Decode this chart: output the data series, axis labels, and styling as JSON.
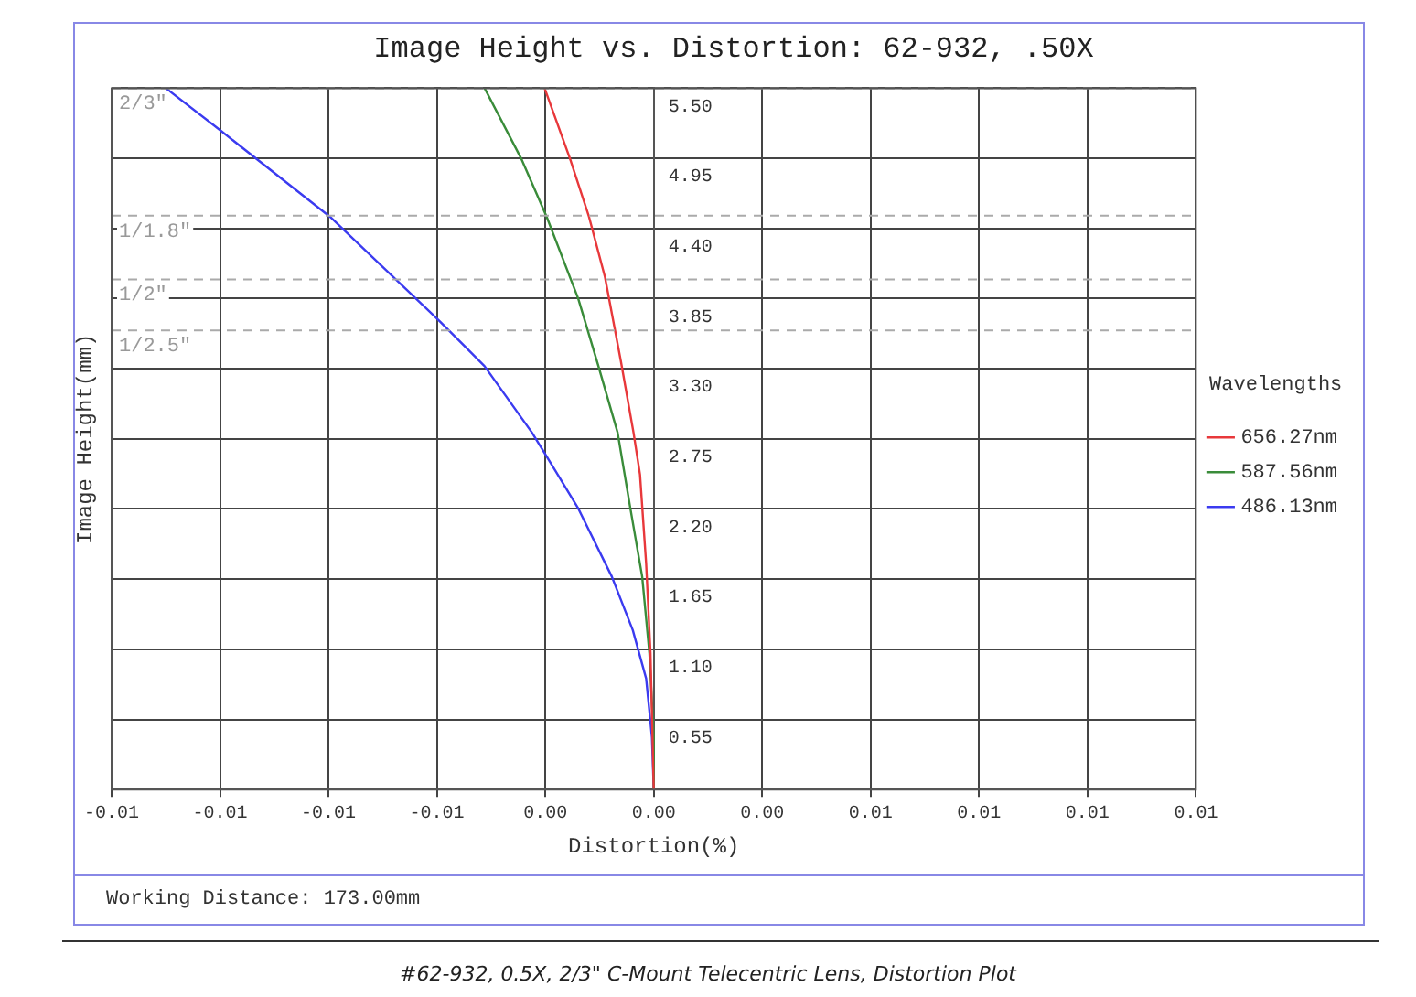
{
  "chart_data": {
    "type": "line",
    "title": "Image Height vs. Distortion: 62-932, .50X",
    "xlabel": "Distortion(%)",
    "ylabel": "Image Height(mm)",
    "legend_title": "Wavelengths",
    "legend": "right",
    "grid": true,
    "marker": "none",
    "line_style": "solid",
    "xlim": [
      -0.015,
      0.015
    ],
    "xticks": [
      {
        "value": -0.015,
        "label": "-0.01"
      },
      {
        "value": -0.012,
        "label": "-0.01"
      },
      {
        "value": -0.009,
        "label": "-0.01"
      },
      {
        "value": -0.006,
        "label": "-0.01"
      },
      {
        "value": -0.003,
        "label": "0.00"
      },
      {
        "value": 0,
        "label": "0.00"
      },
      {
        "value": 0.003,
        "label": "0.00"
      },
      {
        "value": 0.006,
        "label": "0.01"
      },
      {
        "value": 0.009,
        "label": "0.01"
      },
      {
        "value": 0.012,
        "label": "0.01"
      },
      {
        "value": 0.015,
        "label": "0.01"
      }
    ],
    "ylim": [
      0,
      5.5
    ],
    "yticks": [
      {
        "value": 0,
        "label": null
      },
      {
        "value": 0.55,
        "label": "0.55"
      },
      {
        "value": 1.1,
        "label": "1.10"
      },
      {
        "value": 1.65,
        "label": "1.65"
      },
      {
        "value": 2.2,
        "label": "2.20"
      },
      {
        "value": 2.75,
        "label": "2.75"
      },
      {
        "value": 3.3,
        "label": "3.30"
      },
      {
        "value": 3.85,
        "label": "3.85"
      },
      {
        "value": 4.4,
        "label": "4.40"
      },
      {
        "value": 4.95,
        "label": "4.95"
      },
      {
        "value": 5.5,
        "label": "5.50"
      }
    ],
    "series": [
      {
        "name": "656.27nm",
        "color": "#e8383b",
        "x": [
          0,
          -9e-05,
          -0.00021,
          -0.00038,
          -0.00056,
          -0.00091,
          -0.00135,
          -0.00179,
          -0.00232,
          -0.00302
        ],
        "values": [
          0,
          1.07,
          1.77,
          2.47,
          2.8,
          3.36,
          4.02,
          4.49,
          4.95,
          5.5
        ]
      },
      {
        "name": "587.56nm",
        "color": "#3a8c3a",
        "x": [
          0,
          0,
          -0.00012,
          -0.00032,
          -0.00065,
          -0.001,
          -0.00153,
          -0.00209,
          -0.00296,
          -0.00367,
          -0.00468
        ],
        "values": [
          0,
          0.41,
          1.07,
          1.67,
          2.21,
          2.8,
          3.32,
          3.85,
          4.49,
          4.95,
          5.5
        ]
      },
      {
        "name": "486.13nm",
        "color": "#3b3bf0",
        "x": [
          0,
          -5e-05,
          -0.00021,
          -0.00058,
          -0.00116,
          -0.0021,
          -0.003,
          -0.00337,
          -0.00468,
          -0.00595,
          -0.00895,
          -0.01195,
          -0.0135
        ],
        "values": [
          0,
          0.41,
          0.87,
          1.25,
          1.67,
          2.21,
          2.63,
          2.8,
          3.32,
          3.68,
          4.49,
          5.16,
          5.5
        ]
      }
    ],
    "ref_lines": [
      {
        "axis": "y",
        "value": 5.5,
        "color": "#aaaaaa",
        "line_style": "dashed"
      },
      {
        "axis": "y",
        "value": 4.5,
        "color": "#aaaaaa",
        "line_style": "dashed"
      },
      {
        "axis": "y",
        "value": 4.0,
        "color": "#aaaaaa",
        "line_style": "dashed"
      },
      {
        "axis": "y",
        "value": 3.6,
        "color": "#aaaaaa",
        "line_style": "dashed"
      }
    ],
    "annotations": [
      "Working Distance: 173.00mm",
      "#62-932, 0.5X, 2/3\" C-Mount Telecentric Lens, Distortion Plot",
      {
        "text": "2/3\"",
        "y": 5.5
      },
      {
        "text": "1/1.8\"",
        "y": 4.5
      },
      {
        "text": "1/2\"",
        "y": 4.0
      },
      {
        "text": "1/2.5\"",
        "y": 3.6
      }
    ]
  }
}
